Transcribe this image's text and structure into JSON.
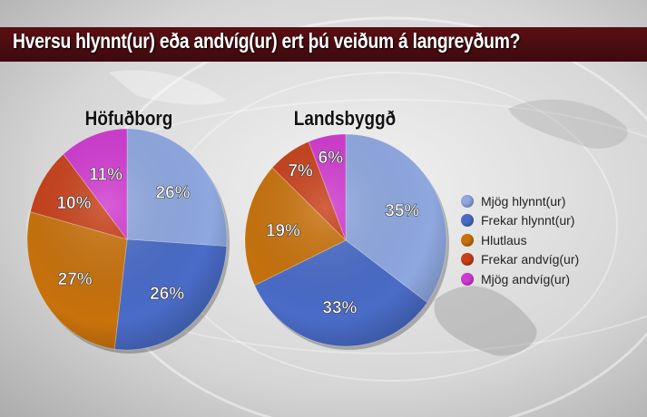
{
  "header": {
    "title": "Hversu hlynnt(ur) eða andvíg(ur) ert þú veiðum á langreyðum?"
  },
  "legend": {
    "items": [
      {
        "label": "Mjög hlynnt(ur)",
        "color": "#8fa8e0"
      },
      {
        "label": "Frekar hlynnt(ur)",
        "color": "#4a6cc8"
      },
      {
        "label": "Hlutlaus",
        "color": "#c8720c"
      },
      {
        "label": "Frekar andvíg(ur)",
        "color": "#c8401a"
      },
      {
        "label": "Mjög andvíg(ur)",
        "color": "#d03ad0"
      }
    ]
  },
  "chart_data": [
    {
      "type": "pie",
      "title": "Höfuðborg",
      "categories": [
        "Mjög hlynnt(ur)",
        "Frekar hlynnt(ur)",
        "Hlutlaus",
        "Frekar andvíg(ur)",
        "Mjög andvíg(ur)"
      ],
      "values": [
        26,
        26,
        27,
        10,
        11
      ],
      "labels": [
        "26%",
        "26%",
        "27%",
        "10%",
        "11%"
      ],
      "colors": [
        "#8fa8e0",
        "#4a6cc8",
        "#c8720c",
        "#c8401a",
        "#d03ad0"
      ]
    },
    {
      "type": "pie",
      "title": "Landsbyggð",
      "categories": [
        "Mjög hlynnt(ur)",
        "Frekar hlynnt(ur)",
        "Hlutlaus",
        "Frekar andvíg(ur)",
        "Mjög andvíg(ur)"
      ],
      "values": [
        35,
        33,
        19,
        7,
        6
      ],
      "labels": [
        "35%",
        "33%",
        "19%",
        "7%",
        "6%"
      ],
      "colors": [
        "#8fa8e0",
        "#4a6cc8",
        "#c8720c",
        "#c8401a",
        "#d03ad0"
      ]
    }
  ]
}
